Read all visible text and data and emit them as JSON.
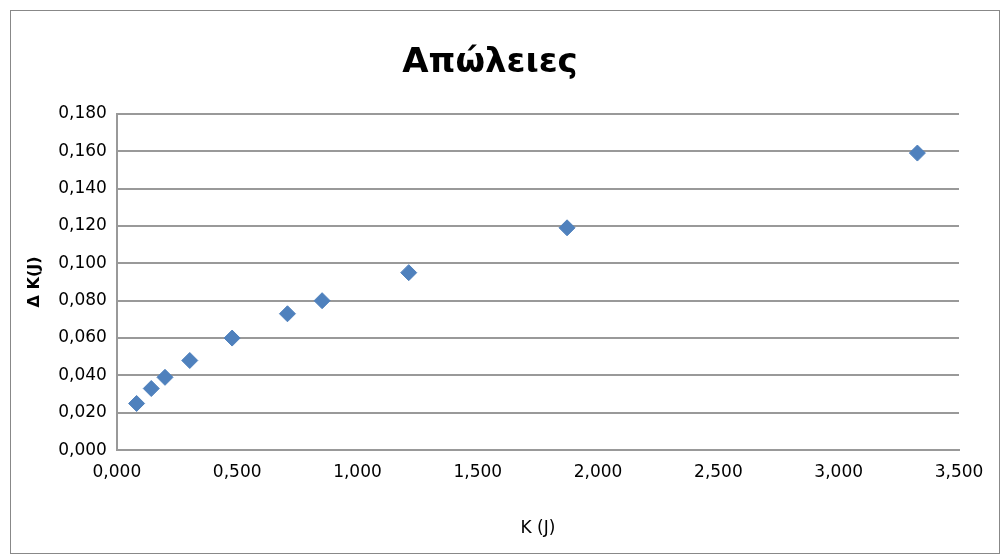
{
  "chart_data": {
    "type": "scatter",
    "title": "Απώλειες",
    "xlabel": "K (J)",
    "ylabel": "Δ K(J)",
    "x": [
      0.082,
      0.143,
      0.2,
      0.303,
      0.479,
      0.709,
      0.853,
      1.213,
      1.871,
      3.327
    ],
    "series": [
      {
        "color": "#4f81bd",
        "values": [
          0.025,
          0.033,
          0.039,
          0.048,
          0.06,
          0.073,
          0.08,
          0.095,
          0.119,
          0.159
        ]
      }
    ],
    "xlim": [
      0,
      3.5
    ],
    "xticks": [
      {
        "value": 0,
        "label": "0,000"
      },
      {
        "value": 0.5,
        "label": "0,500"
      },
      {
        "value": 1,
        "label": "1,000"
      },
      {
        "value": 1.5,
        "label": "1,500"
      },
      {
        "value": 2,
        "label": "2,000"
      },
      {
        "value": 2.5,
        "label": "2,500"
      },
      {
        "value": 3,
        "label": "3,000"
      },
      {
        "value": 3.5,
        "label": "3,500"
      }
    ],
    "ylim": [
      0,
      0.18
    ],
    "yticks": [
      {
        "value": 0,
        "label": "0,000"
      },
      {
        "value": 0.02,
        "label": "0,020"
      },
      {
        "value": 0.04,
        "label": "0,040"
      },
      {
        "value": 0.06,
        "label": "0,060"
      },
      {
        "value": 0.08,
        "label": "0,080"
      },
      {
        "value": 0.1,
        "label": "0,100"
      },
      {
        "value": 0.12,
        "label": "0,120"
      },
      {
        "value": 0.14,
        "label": "0,140"
      },
      {
        "value": 0.16,
        "label": "0,160"
      },
      {
        "value": 0.18,
        "label": "0,180"
      }
    ],
    "grid": "y",
    "legend": false,
    "marker": "diamond"
  }
}
